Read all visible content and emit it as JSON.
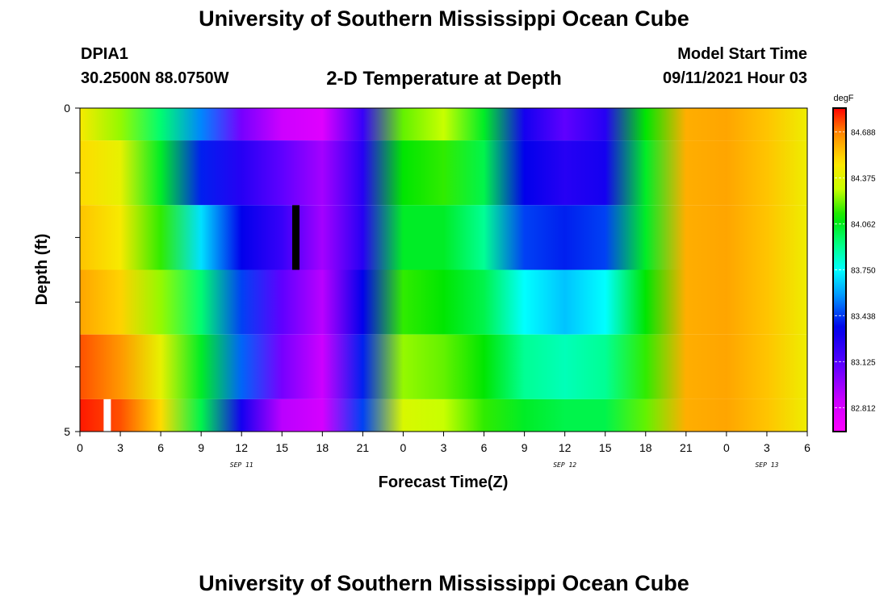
{
  "header": {
    "title": "University of Southern Mississippi Ocean Cube",
    "station": "DPIA1",
    "coords": "30.2500N  88.0750W",
    "subtitle": "2-D Temperature at Depth",
    "model_start_label": "Model Start Time",
    "model_start_value": "09/11/2021 Hour 03"
  },
  "footer": {
    "title": "University of Southern Mississippi Ocean Cube"
  },
  "chart_data": {
    "type": "heatmap",
    "xlabel": "Forecast Time(Z)",
    "ylabel": "Depth (ft)",
    "x_tick_labels": [
      "0",
      "3",
      "6",
      "9",
      "12",
      "15",
      "18",
      "21",
      "0",
      "3",
      "6",
      "9",
      "12",
      "15",
      "18",
      "21",
      "0",
      "3",
      "6"
    ],
    "x_hours_range": [
      0,
      54
    ],
    "date_labels": [
      {
        "label": "SEP 11",
        "hour": 12
      },
      {
        "label": "SEP 12",
        "hour": 36
      },
      {
        "label": "SEP 13",
        "hour": 51
      }
    ],
    "y_tick_labels": [
      "0",
      "5"
    ],
    "ylim": [
      0,
      5
    ],
    "colorbar": {
      "unit": "degF",
      "labels": [
        "84.688",
        "84.375",
        "84.062",
        "83.750",
        "83.438",
        "83.125",
        "82.812"
      ],
      "range": [
        82.65,
        84.85
      ]
    },
    "row_depths_ft": [
      0.25,
      1.0,
      2.0,
      3.0,
      4.0,
      4.75
    ],
    "column_hours": [
      0,
      3,
      6,
      9,
      12,
      15,
      18,
      21,
      24,
      27,
      30,
      33,
      36,
      39,
      42,
      45,
      48,
      51,
      54
    ],
    "temperature_degF": [
      [
        84.45,
        84.25,
        83.95,
        83.55,
        83.05,
        82.85,
        82.78,
        83.2,
        84.2,
        84.3,
        84.05,
        83.3,
        83.1,
        83.25,
        84.1,
        84.6,
        84.62,
        84.55,
        84.42
      ],
      [
        84.5,
        84.4,
        84.05,
        83.4,
        83.25,
        83.1,
        82.95,
        83.25,
        84.1,
        84.15,
        84.0,
        83.35,
        83.25,
        83.3,
        84.05,
        84.6,
        84.62,
        84.55,
        84.42
      ],
      [
        84.55,
        84.45,
        84.15,
        83.7,
        83.35,
        83.2,
        82.95,
        83.25,
        84.05,
        84.05,
        83.9,
        83.45,
        83.4,
        83.45,
        84.05,
        84.6,
        84.62,
        84.55,
        84.42
      ],
      [
        84.62,
        84.52,
        84.25,
        83.95,
        83.45,
        83.1,
        82.9,
        83.35,
        84.15,
        84.1,
        84.0,
        83.75,
        83.65,
        83.75,
        84.1,
        84.6,
        84.62,
        84.55,
        84.42
      ],
      [
        84.75,
        84.65,
        84.4,
        84.05,
        83.5,
        83.05,
        82.85,
        83.4,
        84.25,
        84.2,
        84.1,
        83.9,
        83.85,
        83.9,
        84.15,
        84.6,
        84.62,
        84.55,
        84.42
      ],
      [
        84.82,
        84.75,
        84.5,
        84.0,
        83.3,
        82.9,
        82.82,
        83.45,
        84.35,
        84.3,
        84.15,
        84.05,
        84.0,
        84.0,
        84.2,
        84.6,
        84.62,
        84.55,
        84.42
      ]
    ],
    "markers": [
      {
        "color": "#000000",
        "hour": 16,
        "depth_ft": [
          1.5,
          2.5
        ]
      },
      {
        "color": "#ffffff",
        "hour": 2,
        "depth_ft": [
          4.5,
          5.0
        ]
      }
    ]
  }
}
